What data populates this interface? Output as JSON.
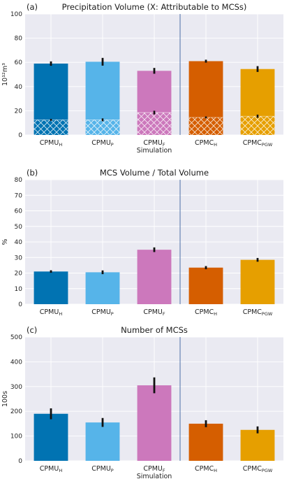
{
  "colors": {
    "plot_bg": "#eaeaf2",
    "grid": "#ffffff",
    "divider": "#4a6fa5",
    "errorbar": "#111111",
    "series": [
      "#0173b2",
      "#56b4e9",
      "#cc78bc",
      "#d55e00",
      "#e69f00"
    ]
  },
  "categories": [
    {
      "base": "CPMU",
      "sub": "H"
    },
    {
      "base": "CPMU",
      "sub": "P"
    },
    {
      "base": "CPMU",
      "sub": "F"
    },
    {
      "base": "CPMC",
      "sub": "H"
    },
    {
      "base": "CPMC",
      "sub": "PGW"
    }
  ],
  "chart_data": [
    {
      "type": "bar",
      "panel": "(a)",
      "title": "Precipitation Volume (X: Attributable to MCSs)",
      "ylabel": "10¹²m³",
      "xlabel": "Simulation",
      "ylim": [
        0,
        100
      ],
      "yticks": [
        0,
        20,
        40,
        60,
        80,
        100
      ],
      "grid": true,
      "values": [
        59,
        60.5,
        53,
        61,
        54.5
      ],
      "errors": [
        1.8,
        3.2,
        2.4,
        1.2,
        2.4
      ],
      "hatched_values": [
        12.5,
        12.5,
        18.5,
        14.5,
        15.5
      ],
      "hatched_errors": [
        0.8,
        1.2,
        1.5,
        0.8,
        1.3
      ]
    },
    {
      "type": "bar",
      "panel": "(b)",
      "title": "MCS Volume / Total Volume",
      "ylabel": "%",
      "xlabel": "",
      "ylim": [
        0,
        80
      ],
      "yticks": [
        0,
        10,
        20,
        30,
        40,
        50,
        60,
        70,
        80
      ],
      "grid": true,
      "values": [
        21,
        20.5,
        35,
        23.5,
        28.5
      ],
      "errors": [
        0.8,
        1.2,
        1.5,
        1.0,
        1.2
      ]
    },
    {
      "type": "bar",
      "panel": "(c)",
      "title": "Number of MCSs",
      "ylabel": "100s",
      "xlabel": "Simulation",
      "ylim": [
        0,
        500
      ],
      "yticks": [
        0,
        100,
        200,
        300,
        400,
        500
      ],
      "grid": true,
      "values": [
        190,
        155,
        305,
        150,
        125
      ],
      "errors": [
        22,
        18,
        32,
        14,
        14
      ]
    }
  ]
}
